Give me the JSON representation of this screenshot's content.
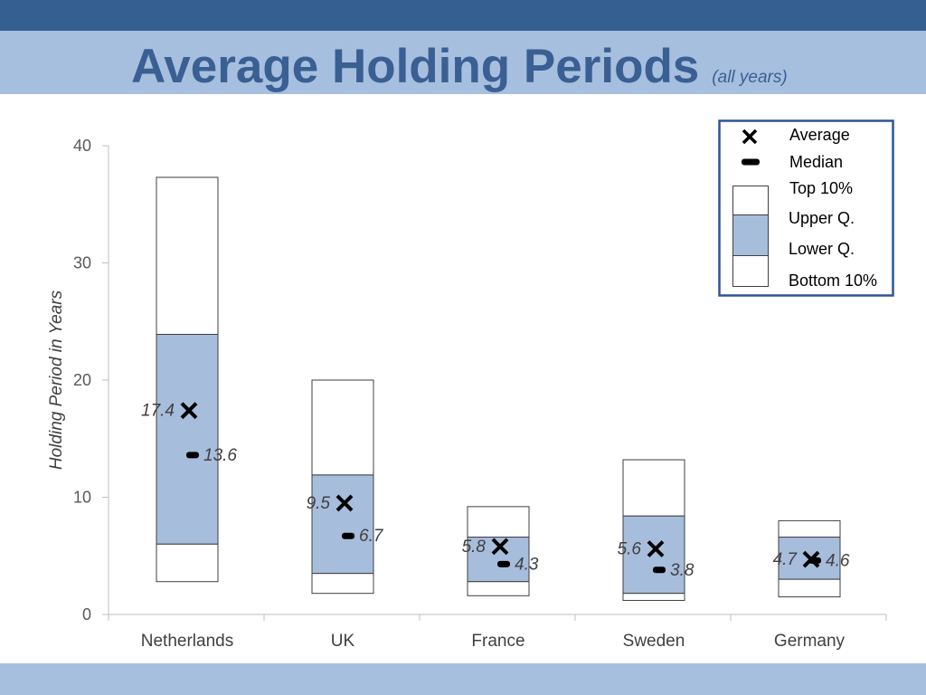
{
  "theme": {
    "header_bar": "#355f91",
    "header_band": "#a7bfdf",
    "footer_band": "#a7bfdf",
    "title_color": "#3a5f92",
    "box_fill": "#a7bddc",
    "box_outline": "#3f3f3f",
    "legend_border": "#2f5597",
    "marker_color": "#000000",
    "axis_color": "#bfbfbf"
  },
  "chart_data": {
    "type": "bar",
    "title": "Average Holding Periods",
    "subtitle": "(all years)",
    "xlabel": "",
    "ylabel": "Holding Period in Years",
    "ylim": [
      0,
      40
    ],
    "yticks": [
      0,
      10,
      20,
      30,
      40
    ],
    "categories": [
      "Netherlands",
      "UK",
      "France",
      "Sweden",
      "Germany"
    ],
    "series": [
      {
        "name": "Average",
        "marker": "cross-icon",
        "values": [
          17.4,
          9.5,
          5.8,
          5.6,
          4.7
        ]
      },
      {
        "name": "Median",
        "marker": "dash-icon",
        "values": [
          13.6,
          6.7,
          4.3,
          3.8,
          4.6
        ]
      },
      {
        "name": "Top 10%",
        "values": [
          37.3,
          20.0,
          9.2,
          13.2,
          8.0
        ]
      },
      {
        "name": "Upper Q.",
        "values": [
          23.9,
          11.9,
          6.6,
          8.4,
          6.6
        ]
      },
      {
        "name": "Lower Q.",
        "values": [
          6.0,
          3.5,
          2.8,
          1.8,
          3.0
        ]
      },
      {
        "name": "Bottom 10%",
        "values": [
          2.8,
          1.8,
          1.6,
          1.2,
          1.5
        ]
      }
    ],
    "legend": "top-right",
    "grid": false
  }
}
